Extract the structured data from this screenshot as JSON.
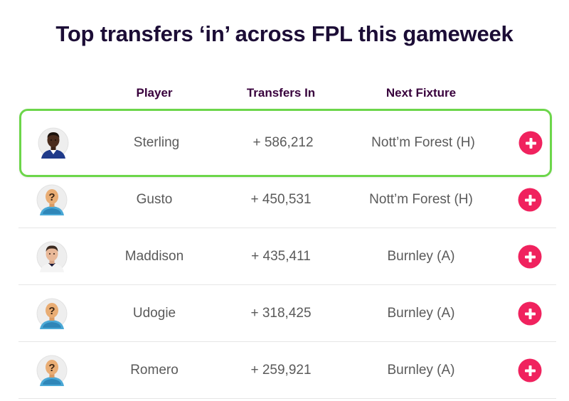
{
  "title": "Top transfers ‘in’ across FPL this gameweek",
  "columns": {
    "player": "Player",
    "transfers_in": "Transfers In",
    "next_fixture": "Next Fixture"
  },
  "rows": [
    {
      "player": "Sterling",
      "transfers_in": "+ 586,212",
      "fixture": "Nott’m Forest (H)",
      "highlighted": true,
      "avatar": "player-photo-avatar"
    },
    {
      "player": "Gusto",
      "transfers_in": "+ 450,531",
      "fixture": "Nott’m Forest (H)",
      "highlighted": false,
      "avatar": "placeholder-avatar"
    },
    {
      "player": "Maddison",
      "transfers_in": "+ 435,411",
      "fixture": "Burnley (A)",
      "highlighted": false,
      "avatar": "player-photo-avatar"
    },
    {
      "player": "Udogie",
      "transfers_in": "+ 318,425",
      "fixture": "Burnley (A)",
      "highlighted": false,
      "avatar": "placeholder-avatar"
    },
    {
      "player": "Romero",
      "transfers_in": "+ 259,921",
      "fixture": "Burnley (A)",
      "highlighted": false,
      "avatar": "placeholder-avatar"
    }
  ],
  "colors": {
    "title": "#1c0d36",
    "header": "#38003c",
    "highlight_border": "#6cd64a",
    "add_button": "#f0225e"
  },
  "icons": {
    "add": "plus-circle-icon"
  }
}
